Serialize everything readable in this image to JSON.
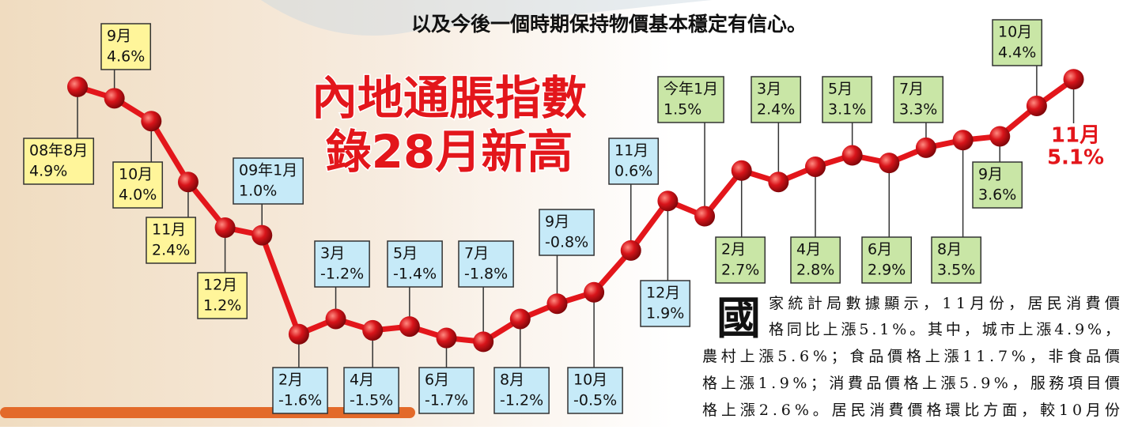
{
  "header": {
    "text": "以及今後一個時期保持物價基本穩定有信心。"
  },
  "chart_data": {
    "type": "line",
    "title": [
      "內地通脹指數",
      "錄28月新高"
    ],
    "categories": [
      "08年8月",
      "9月",
      "10月",
      "11月",
      "12月",
      "09年1月",
      "2月",
      "3月",
      "4月",
      "5月",
      "6月",
      "7月",
      "8月",
      "9月",
      "10月",
      "11月",
      "12月",
      "今年1月",
      "2月",
      "3月",
      "4月",
      "5月",
      "6月",
      "7月",
      "8月",
      "9月",
      "10月",
      "11月"
    ],
    "values": [
      4.9,
      4.6,
      4.0,
      2.4,
      1.2,
      1.0,
      -1.6,
      -1.2,
      -1.5,
      -1.4,
      -1.7,
      -1.8,
      -1.2,
      -0.8,
      -0.5,
      0.6,
      1.9,
      1.5,
      2.7,
      2.4,
      2.8,
      3.1,
      2.9,
      3.3,
      3.5,
      3.6,
      4.4,
      5.1
    ],
    "value_labels": [
      "4.9%",
      "4.6%",
      "4.0%",
      "2.4%",
      "1.2%",
      "1.0%",
      "-1.6%",
      "-1.2%",
      "-1.5%",
      "-1.4%",
      "-1.7%",
      "-1.8%",
      "-1.2%",
      "-0.8%",
      "-0.5%",
      "0.6%",
      "1.9%",
      "1.5%",
      "2.7%",
      "2.4%",
      "2.8%",
      "3.1%",
      "2.9%",
      "3.3%",
      "3.5%",
      "3.6%",
      "4.4%",
      "5.1%"
    ],
    "color": "#e3161b",
    "label_colors": [
      "#fff59a",
      "#fff59a",
      "#fff59a",
      "#fff59a",
      "#fff59a",
      "#c6eaf8",
      "#c6eaf8",
      "#c6eaf8",
      "#c6eaf8",
      "#c6eaf8",
      "#c6eaf8",
      "#c6eaf8",
      "#c6eaf8",
      "#c6eaf8",
      "#c6eaf8",
      "#c6eaf8",
      "#c6eaf8",
      "#c9e6a6",
      "#c9e6a6",
      "#c9e6a6",
      "#c9e6a6",
      "#c9e6a6",
      "#c9e6a6",
      "#c9e6a6",
      "#c9e6a6",
      "#c9e6a6",
      "#c9e6a6",
      null
    ],
    "highlight_color": "#e3161b",
    "ylim": [
      -2,
      5.5
    ]
  },
  "article": {
    "drop_cap": "國",
    "lines": [
      "家統計局數據顯示，11月份，居民消費價",
      "格同比上漲5.1%。其中，城市上漲4.9%，",
      "農村上漲5.6%；食品價格上漲11.7%，非食品價",
      "格上漲1.9%；消費品價格上漲5.9%，服務項目價",
      "格上漲2.6%。居民消費價格環比方面，較10月份"
    ]
  }
}
